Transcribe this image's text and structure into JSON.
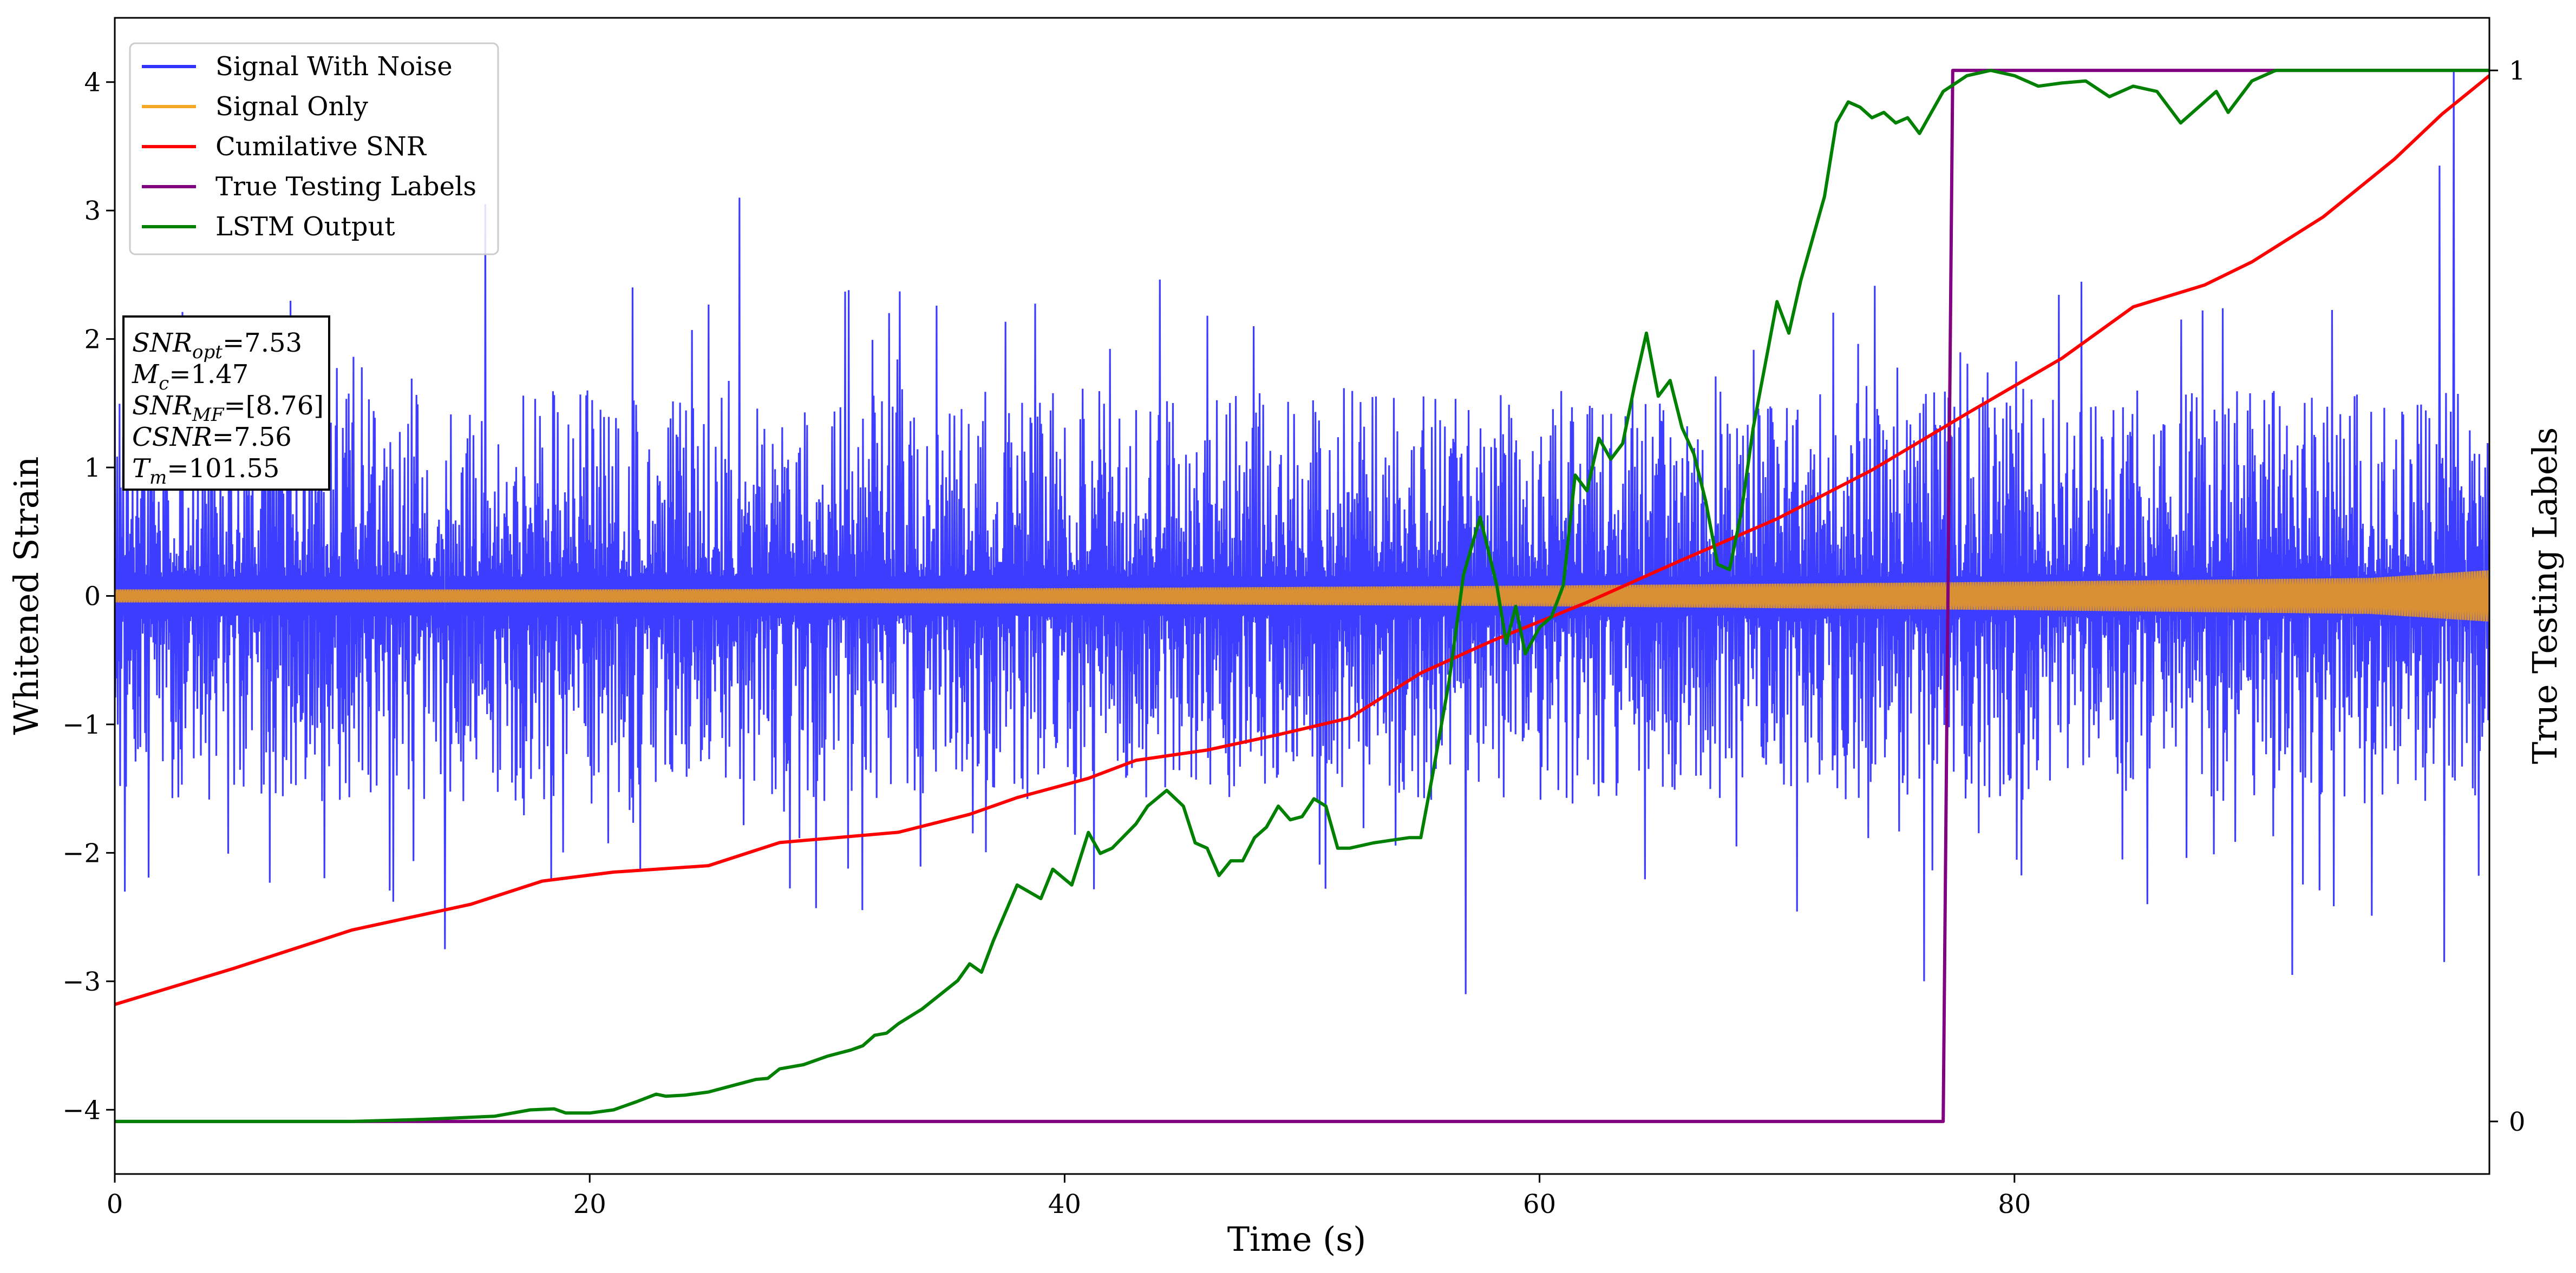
{
  "chart_data": {
    "type": "line",
    "xlabel": "Time (s)",
    "ylabel": "Whitened Strain",
    "y2label": "True Testing Labels",
    "xlim": [
      0,
      100
    ],
    "ylim": [
      -4.5,
      4.5
    ],
    "y2lim": [
      -0.05,
      1.05
    ],
    "x_ticks": [
      0,
      20,
      40,
      60,
      80
    ],
    "y_ticks": [
      -4,
      -3,
      -2,
      -1,
      0,
      1,
      2,
      3,
      4
    ],
    "y2_ticks": [
      0,
      1
    ],
    "grid": false,
    "legend_position": "top-left",
    "series": [
      {
        "name": "Signal With Noise",
        "axis": "left",
        "color": "#3333ff",
        "style": "noise",
        "band": [
          -1.6,
          1.6
        ],
        "notable_spikes": [
          [
            15.6,
            3.05
          ],
          [
            26.3,
            3.1
          ],
          [
            97.9,
            3.35
          ],
          [
            98.5,
            4.1
          ],
          [
            56.9,
            -3.1
          ],
          [
            76.2,
            -3.0
          ],
          [
            91.7,
            -2.95
          ],
          [
            13.9,
            -2.75
          ],
          [
            98.1,
            -2.85
          ]
        ]
      },
      {
        "name": "Signal Only",
        "axis": "left",
        "color": "#f5a623",
        "style": "chirp",
        "amplitude": [
          [
            0,
            0.05
          ],
          [
            20,
            0.05
          ],
          [
            40,
            0.06
          ],
          [
            60,
            0.08
          ],
          [
            80,
            0.11
          ],
          [
            95,
            0.14
          ],
          [
            100,
            0.2
          ]
        ]
      },
      {
        "name": "Cumilative SNR",
        "axis": "left",
        "color": "#ff0000",
        "points": [
          [
            0,
            -3.18
          ],
          [
            5,
            -2.9
          ],
          [
            10,
            -2.6
          ],
          [
            15,
            -2.4
          ],
          [
            18,
            -2.22
          ],
          [
            21,
            -2.15
          ],
          [
            25,
            -2.1
          ],
          [
            28,
            -1.92
          ],
          [
            33,
            -1.84
          ],
          [
            36,
            -1.7
          ],
          [
            38,
            -1.57
          ],
          [
            41,
            -1.42
          ],
          [
            43,
            -1.28
          ],
          [
            46,
            -1.2
          ],
          [
            49,
            -1.08
          ],
          [
            52,
            -0.95
          ],
          [
            55,
            -0.6
          ],
          [
            58,
            -0.35
          ],
          [
            62,
            -0.05
          ],
          [
            66,
            0.28
          ],
          [
            70,
            0.6
          ],
          [
            74,
            0.98
          ],
          [
            78,
            1.42
          ],
          [
            82,
            1.85
          ],
          [
            85,
            2.25
          ],
          [
            88,
            2.42
          ],
          [
            90,
            2.6
          ],
          [
            93,
            2.95
          ],
          [
            96,
            3.4
          ],
          [
            98,
            3.75
          ],
          [
            100,
            4.05
          ]
        ]
      },
      {
        "name": "True Testing Labels",
        "axis": "right",
        "color": "#800080",
        "points": [
          [
            0,
            0
          ],
          [
            77,
            0
          ],
          [
            77.4,
            1
          ],
          [
            100,
            1
          ]
        ]
      },
      {
        "name": "LSTM Output",
        "axis": "right",
        "color": "#008000",
        "points": [
          [
            0,
            0
          ],
          [
            10,
            0
          ],
          [
            13,
            0.002
          ],
          [
            16,
            0.005
          ],
          [
            17.5,
            0.011
          ],
          [
            18.5,
            0.012
          ],
          [
            19,
            0.008
          ],
          [
            20,
            0.008
          ],
          [
            21,
            0.011
          ],
          [
            22,
            0.019
          ],
          [
            22.8,
            0.026
          ],
          [
            23.2,
            0.024
          ],
          [
            24,
            0.025
          ],
          [
            25,
            0.028
          ],
          [
            26,
            0.034
          ],
          [
            27,
            0.04
          ],
          [
            27.5,
            0.041
          ],
          [
            28,
            0.05
          ],
          [
            29,
            0.054
          ],
          [
            30,
            0.062
          ],
          [
            31,
            0.068
          ],
          [
            31.5,
            0.072
          ],
          [
            32,
            0.082
          ],
          [
            32.5,
            0.084
          ],
          [
            33,
            0.093
          ],
          [
            34,
            0.107
          ],
          [
            35,
            0.125
          ],
          [
            35.5,
            0.134
          ],
          [
            36,
            0.15
          ],
          [
            36.5,
            0.142
          ],
          [
            37,
            0.172
          ],
          [
            38,
            0.225
          ],
          [
            39,
            0.212
          ],
          [
            39.5,
            0.24
          ],
          [
            40.3,
            0.225
          ],
          [
            41,
            0.275
          ],
          [
            41.5,
            0.255
          ],
          [
            42,
            0.26
          ],
          [
            43,
            0.283
          ],
          [
            43.5,
            0.3
          ],
          [
            44.3,
            0.315
          ],
          [
            45,
            0.3
          ],
          [
            45.5,
            0.265
          ],
          [
            46,
            0.26
          ],
          [
            46.5,
            0.234
          ],
          [
            47,
            0.248
          ],
          [
            47.5,
            0.248
          ],
          [
            48,
            0.27
          ],
          [
            48.5,
            0.28
          ],
          [
            49,
            0.3
          ],
          [
            49.5,
            0.287
          ],
          [
            50,
            0.29
          ],
          [
            50.5,
            0.307
          ],
          [
            51,
            0.3
          ],
          [
            51.5,
            0.26
          ],
          [
            52,
            0.26
          ],
          [
            53,
            0.265
          ],
          [
            54.5,
            0.27
          ],
          [
            55,
            0.27
          ],
          [
            55.5,
            0.33
          ],
          [
            56.2,
            0.42
          ],
          [
            56.8,
            0.52
          ],
          [
            57.5,
            0.575
          ],
          [
            58.2,
            0.51
          ],
          [
            58.6,
            0.455
          ],
          [
            59,
            0.49
          ],
          [
            59.4,
            0.445
          ],
          [
            60,
            0.47
          ],
          [
            60.5,
            0.48
          ],
          [
            61,
            0.51
          ],
          [
            61.5,
            0.615
          ],
          [
            62,
            0.6
          ],
          [
            62.5,
            0.65
          ],
          [
            63,
            0.63
          ],
          [
            63.5,
            0.645
          ],
          [
            64,
            0.7
          ],
          [
            64.5,
            0.75
          ],
          [
            65,
            0.69
          ],
          [
            65.5,
            0.705
          ],
          [
            66,
            0.66
          ],
          [
            66.5,
            0.635
          ],
          [
            67,
            0.59
          ],
          [
            67.5,
            0.53
          ],
          [
            68,
            0.525
          ],
          [
            68.5,
            0.58
          ],
          [
            69,
            0.66
          ],
          [
            69.5,
            0.72
          ],
          [
            70,
            0.78
          ],
          [
            70.5,
            0.75
          ],
          [
            71,
            0.8
          ],
          [
            71.5,
            0.84
          ],
          [
            72,
            0.88
          ],
          [
            72.5,
            0.95
          ],
          [
            73,
            0.97
          ],
          [
            73.5,
            0.965
          ],
          [
            74,
            0.955
          ],
          [
            74.5,
            0.96
          ],
          [
            75,
            0.95
          ],
          [
            75.5,
            0.955
          ],
          [
            76,
            0.94
          ],
          [
            76.5,
            0.96
          ],
          [
            77,
            0.98
          ],
          [
            78,
            0.995
          ],
          [
            79,
            1.0
          ],
          [
            80,
            0.995
          ],
          [
            81,
            0.985
          ],
          [
            82,
            0.988
          ],
          [
            83,
            0.99
          ],
          [
            84,
            0.975
          ],
          [
            85,
            0.985
          ],
          [
            86,
            0.98
          ],
          [
            87,
            0.95
          ],
          [
            88,
            0.97
          ],
          [
            88.5,
            0.98
          ],
          [
            89,
            0.96
          ],
          [
            90,
            0.99
          ],
          [
            91,
            1.0
          ],
          [
            92,
            1.0
          ],
          [
            95,
            1.0
          ],
          [
            100,
            1.0
          ]
        ]
      }
    ],
    "info_box": {
      "lines": [
        {
          "sym": "SNR",
          "sub": "opt",
          "value": "=7.53"
        },
        {
          "sym": "M",
          "sub": "c",
          "value": "=1.47"
        },
        {
          "sym": "SNR",
          "sub": "MF",
          "value": "=[8.76]"
        },
        {
          "sym": "CSNR",
          "sub": "",
          "value": "=7.56"
        },
        {
          "sym": "T",
          "sub": "m",
          "value": "=101.55"
        }
      ]
    }
  }
}
